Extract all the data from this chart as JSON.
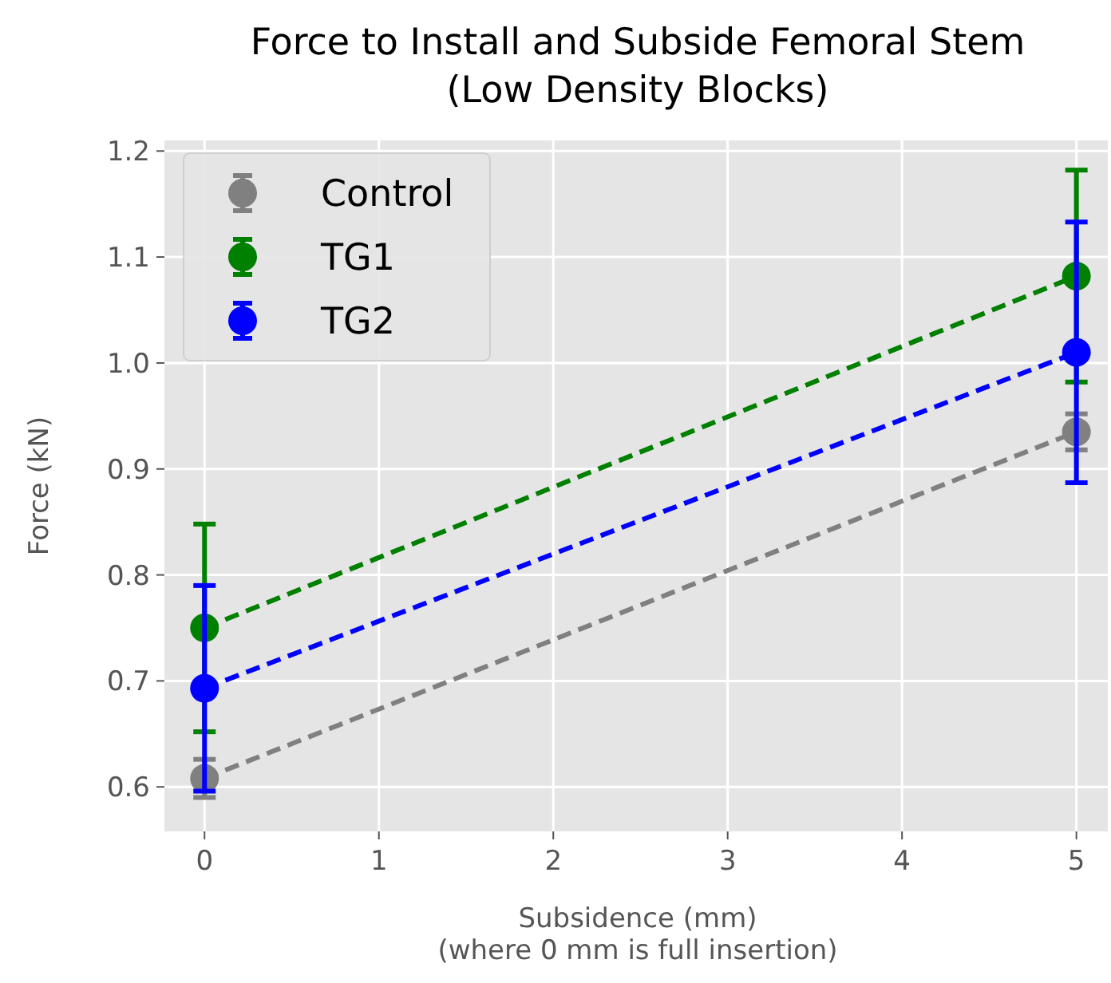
{
  "chart_data": {
    "type": "line",
    "title": "Force to Install and Subside Femoral Stem\n(Low Density Blocks)",
    "xlabel": "Subsidence (mm)\n(where 0 mm is full insertion)",
    "ylabel": "Force (kN)",
    "x": [
      0,
      5
    ],
    "xlim": [
      -0.23,
      5.18
    ],
    "xticks": [
      0,
      1,
      2,
      3,
      4,
      5
    ],
    "ylim": [
      0.558,
      1.21
    ],
    "yticks": [
      0.6,
      0.7,
      0.8,
      0.9,
      {
        "value": 1,
        "label": "1.0"
      },
      1.1,
      1.2
    ],
    "grid": true,
    "legend": "top left",
    "marker": "circle",
    "line_style": "dashed",
    "series": [
      {
        "name": "Control",
        "color": "#808080",
        "values": [
          0.608,
          0.935
        ],
        "errors": [
          0.018,
          0.017
        ]
      },
      {
        "name": "TG1",
        "color": "#008000",
        "values": [
          0.75,
          1.082
        ],
        "errors": [
          0.098,
          0.1
        ]
      },
      {
        "name": "TG2",
        "color": "#0000ff",
        "values": [
          0.693,
          1.01
        ],
        "errors": [
          0.097,
          0.123
        ]
      }
    ]
  }
}
